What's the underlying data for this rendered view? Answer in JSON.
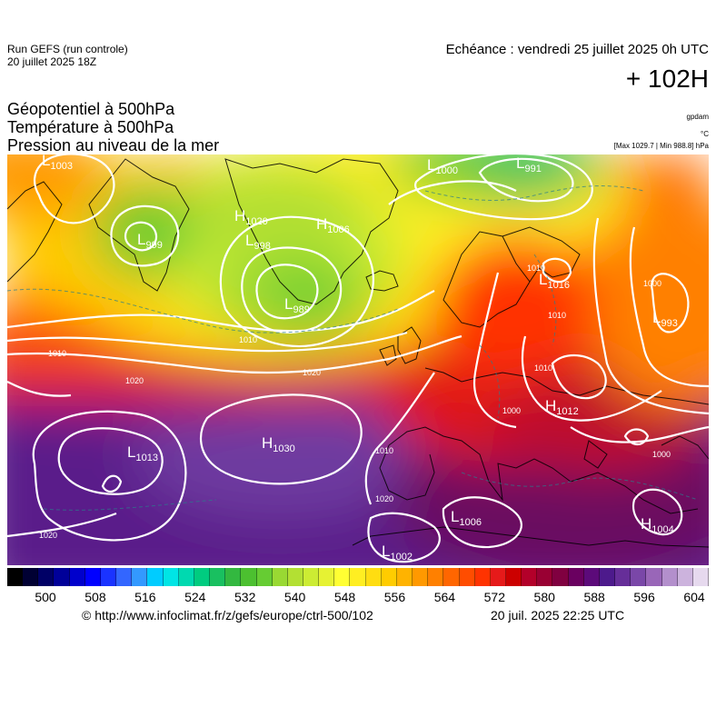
{
  "run": {
    "model": "Run GEFS (run controle)",
    "date": "20 juillet 2025 18Z"
  },
  "forecast": {
    "valid": "Echéance : vendredi 25 juillet 2025 0h UTC",
    "lead": "+ 102H"
  },
  "fields": {
    "geopotential": "Géopotentiel à 500hPa",
    "temperature": "Température à 500hPa",
    "pressure": "Pression au niveau de la mer"
  },
  "units": {
    "geopotential": "gpdam",
    "temperature": "°C",
    "pressure": "[Max 1029.7 | Min 988.8] hPa"
  },
  "legend": {
    "ticks": [
      "500",
      "508",
      "516",
      "524",
      "532",
      "540",
      "548",
      "556",
      "564",
      "572",
      "580",
      "588",
      "596",
      "604"
    ],
    "colors": [
      "#000000",
      "#000033",
      "#000066",
      "#000099",
      "#0000cc",
      "#0000ff",
      "#1a33ff",
      "#3366ff",
      "#3399ff",
      "#00ccff",
      "#00e5e5",
      "#00d9b0",
      "#00cc80",
      "#19c060",
      "#33b840",
      "#4cc030",
      "#66cc33",
      "#99d933",
      "#b3e033",
      "#ccec33",
      "#e6f233",
      "#ffff33",
      "#ffee22",
      "#ffdd11",
      "#ffcc00",
      "#ffb300",
      "#ff9900",
      "#ff8000",
      "#ff6600",
      "#ff4d00",
      "#ff3300",
      "#e61a1a",
      "#cc0000",
      "#b3002a",
      "#990033",
      "#800040",
      "#6a0060",
      "#5c0a7a",
      "#4d1a8c",
      "#662e99",
      "#7a47a8",
      "#9966b8",
      "#b38fcc",
      "#ccb3dd",
      "#e6d9ee"
    ]
  },
  "pressure_centers": [
    {
      "type": "L",
      "value": "1003"
    },
    {
      "type": "L",
      "value": "999"
    },
    {
      "type": "H",
      "value": "1020"
    },
    {
      "type": "L",
      "value": "998"
    },
    {
      "type": "H",
      "value": "1006"
    },
    {
      "type": "L",
      "value": "989"
    },
    {
      "type": "L",
      "value": "1000"
    },
    {
      "type": "L",
      "value": "991"
    },
    {
      "type": "L",
      "value": "1016"
    },
    {
      "type": "L",
      "value": "993"
    },
    {
      "type": "H",
      "value": "1012"
    },
    {
      "type": "L",
      "value": "1013"
    },
    {
      "type": "H",
      "value": "1030"
    },
    {
      "type": "L",
      "value": "1006"
    },
    {
      "type": "L",
      "value": "1002"
    },
    {
      "type": "H",
      "value": "1004"
    }
  ],
  "isobar_labels": [
    "1010",
    "1010",
    "1020",
    "1020",
    "1020",
    "1010",
    "1020",
    "1000",
    "1010",
    "1010",
    "1000",
    "1010",
    "1000"
  ],
  "footer": {
    "source": "© http://www.infoclimat.fr/z/gefs/europe/ctrl-500/102",
    "generated": "20 juil. 2025 22:25 UTC"
  }
}
